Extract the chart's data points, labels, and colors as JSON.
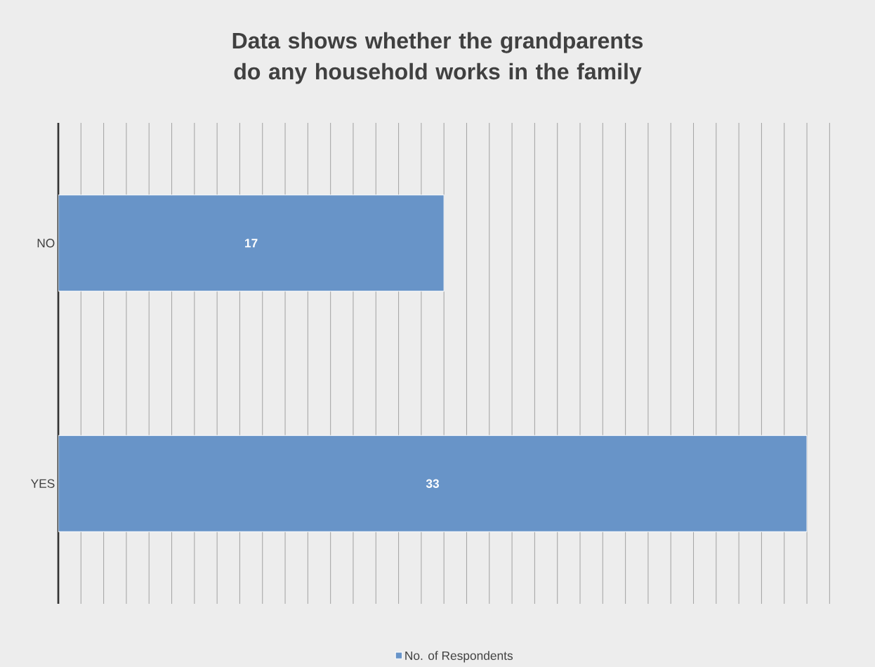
{
  "chart_data": {
    "type": "bar",
    "orientation": "horizontal",
    "title": "Data shows whether the grandparents do any household works in the family",
    "categories": [
      "NO",
      "YES"
    ],
    "series": [
      {
        "name": "No. of Respondents",
        "color": "#6894c8",
        "values": [
          17,
          33
        ]
      }
    ],
    "grid": "x",
    "tick_labels": "y",
    "data_labels": true,
    "legend": "bottom"
  }
}
